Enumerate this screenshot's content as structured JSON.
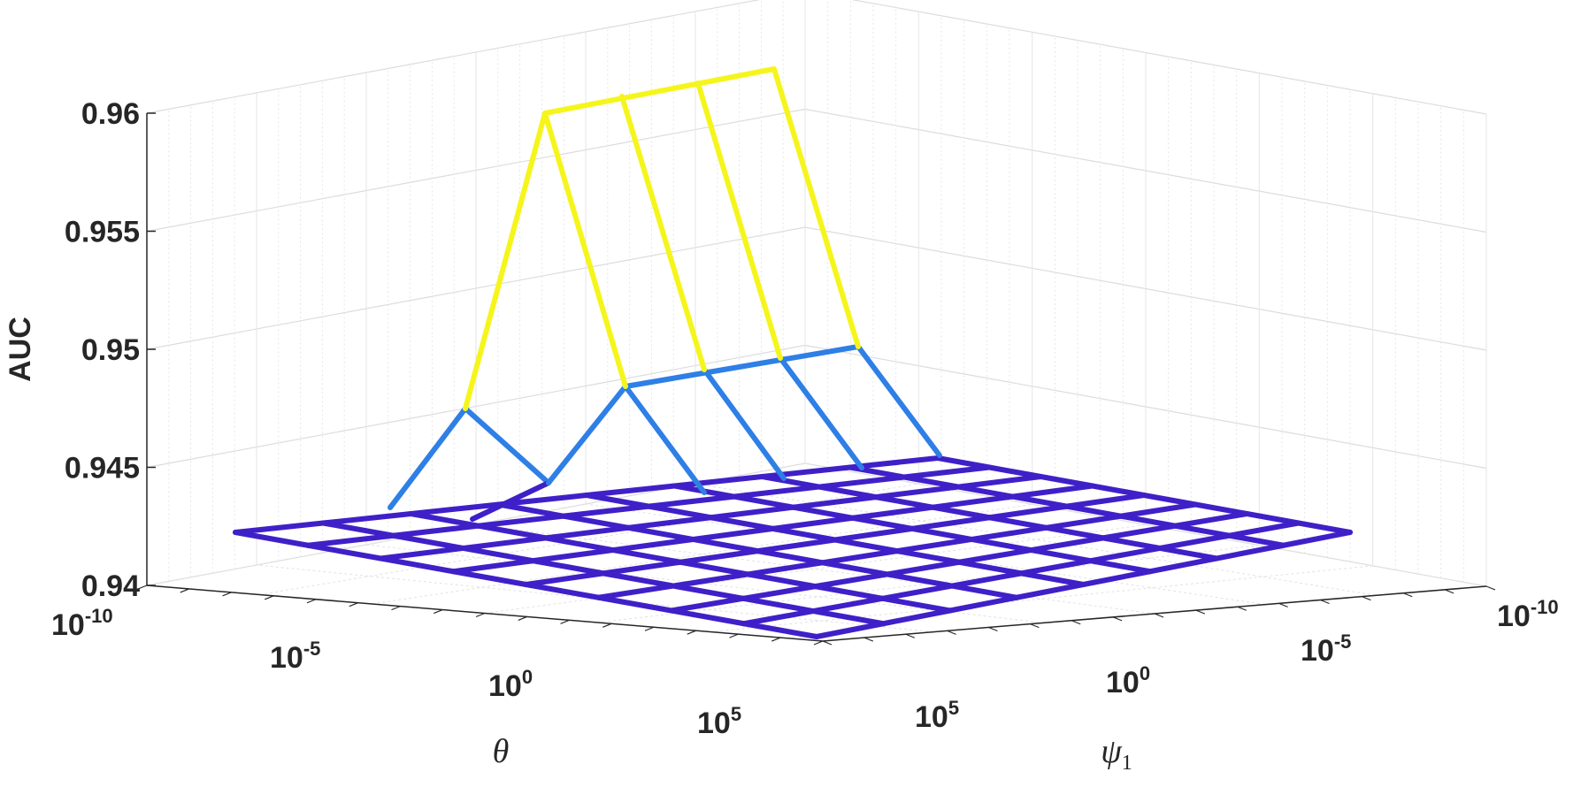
{
  "chart_data": {
    "type": "surface-mesh",
    "zlabel": "AUC",
    "xlabel": "θ",
    "ylabel": "ψ",
    "ylabel_subscript": "1",
    "zlim": [
      0.94,
      0.96
    ],
    "z_ticks": [
      "0.96",
      "0.955",
      "0.95",
      "0.945",
      "0.94"
    ],
    "z_tick_values": [
      0.96,
      0.955,
      0.95,
      0.945,
      0.94
    ],
    "x_scale": "log",
    "x_ticks": [
      {
        "base": "10",
        "exp": "-10"
      },
      {
        "base": "10",
        "exp": "-5"
      },
      {
        "base": "10",
        "exp": "0"
      },
      {
        "base": "10",
        "exp": "5"
      }
    ],
    "y_scale": "log",
    "y_ticks": [
      {
        "base": "10",
        "exp": "-10"
      },
      {
        "base": "10",
        "exp": "-5"
      },
      {
        "base": "10",
        "exp": "0"
      },
      {
        "base": "10",
        "exp": "5"
      }
    ],
    "grid": true,
    "colormap": [
      "#3f20c8",
      "#2e7fe6",
      "#f5f51c"
    ],
    "z": [
      [
        0.9421,
        0.9421,
        0.9421,
        0.9421,
        0.9421,
        0.9421,
        0.9421,
        0.9421,
        0.9421
      ],
      [
        0.9421,
        0.9421,
        0.9421,
        0.9421,
        0.9421,
        0.9421,
        0.9421,
        0.9421,
        0.9421
      ],
      [
        0.9421,
        0.9421,
        0.9421,
        0.9421,
        0.9421,
        0.9421,
        0.9421,
        0.9421,
        0.9421
      ],
      [
        0.9421,
        0.9421,
        0.9421,
        0.9421,
        0.9421,
        0.9421,
        0.9421,
        0.9421,
        0.9421
      ],
      [
        0.9421,
        0.9421,
        0.9421,
        0.9421,
        0.9421,
        0.9421,
        0.9421,
        0.9421,
        0.9421
      ],
      [
        0.9421,
        0.9421,
        0.9421,
        0.9421,
        0.9421,
        0.9421,
        0.9421,
        0.9421,
        0.9421
      ],
      [
        0.9421,
        0.9421,
        0.9421,
        0.9421,
        0.9421,
        0.9421,
        0.9421,
        0.9421,
        0.9421
      ],
      [
        0.9421,
        0.9421,
        0.9421,
        0.9421,
        0.9421,
        0.9421,
        0.9421,
        0.9421,
        0.9421
      ],
      [
        0.9421,
        0.9421,
        0.9421,
        0.9421,
        0.9421,
        0.9421,
        0.9421,
        0.9421,
        0.9421
      ]
    ]
  }
}
